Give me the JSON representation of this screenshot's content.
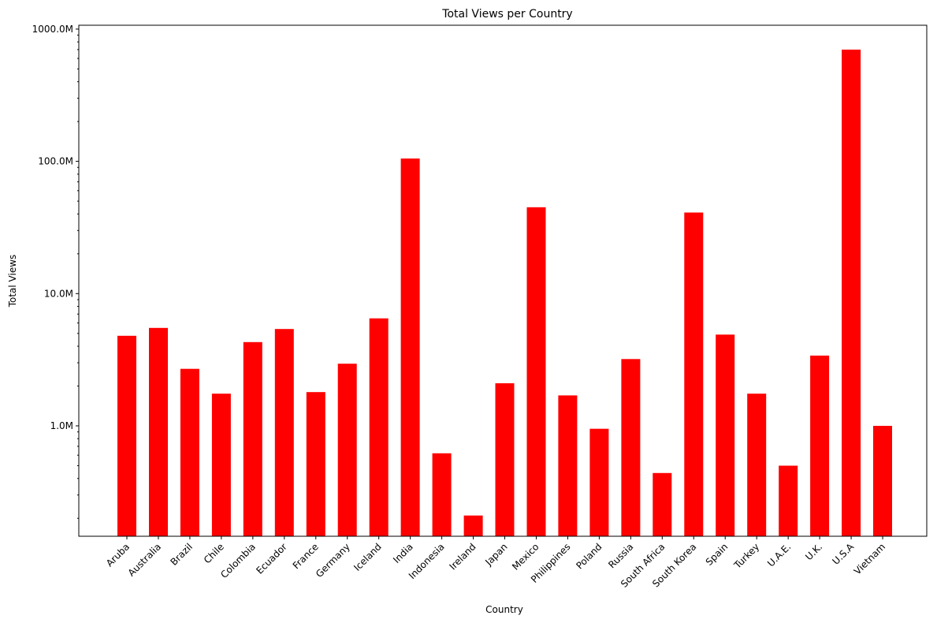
{
  "chart_data": {
    "type": "bar",
    "title": "Total Views per Country",
    "xlabel": "Country",
    "ylabel": "Total Views",
    "yscale": "log",
    "ylim": [
      150000,
      1400000000
    ],
    "bar_color": "#ff0000",
    "grid": false,
    "y_ticks": [
      {
        "value": 1000000,
        "label": "1.0M"
      },
      {
        "value": 10000000,
        "label": "10.0M"
      },
      {
        "value": 100000000,
        "label": "100.0M"
      },
      {
        "value": 1000000000,
        "label": "1000.0M"
      }
    ],
    "categories": [
      "Aruba",
      "Australia",
      "Brazil",
      "Chile",
      "Colombia",
      "Ecuador",
      "France",
      "Germany",
      "Iceland",
      "India",
      "Indonesia",
      "Ireland",
      "Japan",
      "Mexico",
      "Philippines",
      "Poland",
      "Russia",
      "South Africa",
      "South Korea",
      "Spain",
      "Turkey",
      "U.A.E.",
      "U.K.",
      "U.S.A",
      "Vietnam"
    ],
    "values": [
      4800000,
      5500000,
      2700000,
      1750000,
      4300000,
      5400000,
      1800000,
      2950000,
      6500000,
      105000000,
      620000,
      210000,
      2100000,
      45000000,
      1700000,
      950000,
      3200000,
      440000,
      41000000,
      4900000,
      1750000,
      500000,
      3400000,
      700000000,
      1000000
    ]
  }
}
